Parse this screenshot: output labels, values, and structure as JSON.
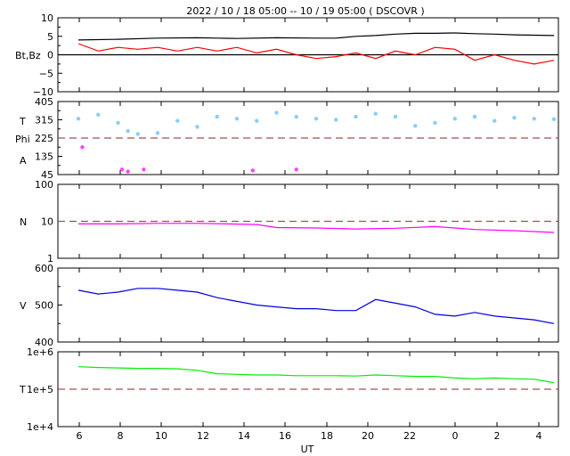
{
  "title": "2022 / 10 / 18   05:00 -- 10 / 19   05:00 ( DSCOVR )",
  "xlabel": "UT",
  "x_tick_labels": [
    "6",
    "8",
    "10",
    "12",
    "14",
    "16",
    "18",
    "20",
    "22",
    "0",
    "2",
    "4"
  ],
  "colors": {
    "bt": "#000000",
    "bz": "#ff0000",
    "theta": "#87cefa",
    "phi": "#ff44ff",
    "density": "#ff00ff",
    "speed": "#0000dd",
    "temp": "#00ee00",
    "ref": "#a05050"
  },
  "chart_data": [
    {
      "type": "line",
      "panel": "mag",
      "ylabel": [
        "Bt,Bz"
      ],
      "ylim": [
        -10,
        10
      ],
      "y_ticks": [
        "10",
        "5",
        "0",
        "−5",
        "−10"
      ],
      "xlim_hours_since_0500": [
        0,
        24
      ],
      "reference_lines": [
        {
          "y": 0,
          "style": "solid"
        }
      ],
      "series": [
        {
          "key": "Bt",
          "color": "black",
          "x": [
            0,
            2,
            4,
            6,
            7,
            8,
            10,
            12,
            13,
            14,
            15,
            16,
            17,
            18,
            19,
            20,
            21,
            22,
            23,
            24
          ],
          "y": [
            4,
            4.2,
            4.5,
            4.6,
            4.5,
            4.4,
            4.6,
            4.5,
            4.5,
            5,
            5.2,
            5.6,
            5.8,
            5.8,
            5.9,
            5.7,
            5.6,
            5.4,
            5.3,
            5.2
          ]
        },
        {
          "key": "Bz",
          "color": "red",
          "x": [
            0,
            1,
            2,
            3,
            4,
            5,
            6,
            7,
            8,
            9,
            10,
            11,
            12,
            13,
            14,
            15,
            16,
            17,
            18,
            19,
            20,
            21,
            22,
            23,
            24
          ],
          "y": [
            3,
            1,
            2,
            1.5,
            2,
            1,
            2,
            1,
            2,
            0.5,
            1.5,
            0,
            -1,
            -0.5,
            0.5,
            -1,
            1,
            0,
            2,
            1.5,
            -1.5,
            0,
            -1.5,
            -2.5,
            -1.5
          ]
        }
      ]
    },
    {
      "type": "scatter",
      "panel": "angles",
      "ylabel": [
        "T",
        "Phi",
        "A"
      ],
      "ylim": [
        45,
        405
      ],
      "y_ticks": [
        "405",
        "315",
        "225",
        "135",
        "45"
      ],
      "reference_lines": [
        {
          "y": 225,
          "style": "dashed"
        }
      ],
      "series": [
        {
          "key": "theta",
          "color": "lightskyblue",
          "x": [
            0,
            1,
            2,
            2.5,
            3,
            4,
            5,
            6,
            7,
            8,
            9,
            10,
            11,
            12,
            13,
            14,
            15,
            16,
            17,
            18,
            19,
            20,
            21,
            22,
            23,
            24
          ],
          "y": [
            320,
            340,
            300,
            260,
            245,
            250,
            310,
            280,
            330,
            320,
            310,
            350,
            330,
            320,
            315,
            330,
            345,
            330,
            285,
            300,
            320,
            330,
            310,
            325,
            320,
            318
          ]
        },
        {
          "key": "phi",
          "color": "violet",
          "x": [
            0.2,
            2.2,
            2.5,
            3.3,
            8.8,
            11
          ],
          "y": [
            180,
            70,
            60,
            70,
            65,
            70
          ]
        }
      ]
    },
    {
      "type": "line",
      "panel": "density",
      "ylabel": [
        "N"
      ],
      "ylim": [
        1,
        100
      ],
      "yscale": "log",
      "y_ticks": [
        "100",
        "10",
        "1"
      ],
      "reference_lines": [
        {
          "y": 10,
          "style": "dashed"
        }
      ],
      "series": [
        {
          "key": "N",
          "color": "magenta",
          "x": [
            0,
            2,
            4,
            6,
            8,
            9,
            10,
            12,
            14,
            16,
            18,
            19,
            20,
            22,
            24
          ],
          "y": [
            8.5,
            8.5,
            8.8,
            8.8,
            8.4,
            8.2,
            6.8,
            6.6,
            6.2,
            6.5,
            7.2,
            6.6,
            6,
            5.6,
            5
          ]
        }
      ]
    },
    {
      "type": "line",
      "panel": "speed",
      "ylabel": [
        "V"
      ],
      "ylim": [
        400,
        600
      ],
      "y_ticks": [
        "600",
        "500",
        "400"
      ],
      "series": [
        {
          "key": "V",
          "color": "mediumblue",
          "x": [
            0,
            1,
            2,
            3,
            4,
            5,
            6,
            7,
            8,
            9,
            10,
            11,
            12,
            13,
            14,
            15,
            16,
            17,
            18,
            19,
            20,
            21,
            22,
            23,
            24
          ],
          "y": [
            540,
            530,
            535,
            545,
            545,
            540,
            535,
            520,
            510,
            500,
            495,
            490,
            490,
            485,
            485,
            515,
            505,
            495,
            475,
            470,
            480,
            470,
            465,
            460,
            450
          ]
        }
      ]
    },
    {
      "type": "line",
      "panel": "temperature",
      "ylabel": [
        "T"
      ],
      "ylim": [
        10000,
        1000000
      ],
      "yscale": "log",
      "y_ticks": [
        "1e+6",
        "1e+5",
        "1e+4"
      ],
      "reference_lines": [
        {
          "y": 100000,
          "style": "dashed"
        }
      ],
      "series": [
        {
          "key": "T",
          "color": "lime",
          "x": [
            0,
            1,
            2,
            3,
            4,
            5,
            6,
            7,
            8,
            9,
            10,
            11,
            12,
            13,
            14,
            15,
            16,
            17,
            18,
            19,
            20,
            21,
            22,
            23,
            24
          ],
          "y": [
            400000,
            380000,
            370000,
            360000,
            360000,
            350000,
            320000,
            260000,
            250000,
            240000,
            240000,
            230000,
            230000,
            230000,
            225000,
            240000,
            230000,
            220000,
            220000,
            200000,
            190000,
            200000,
            190000,
            185000,
            150000
          ]
        }
      ]
    }
  ]
}
